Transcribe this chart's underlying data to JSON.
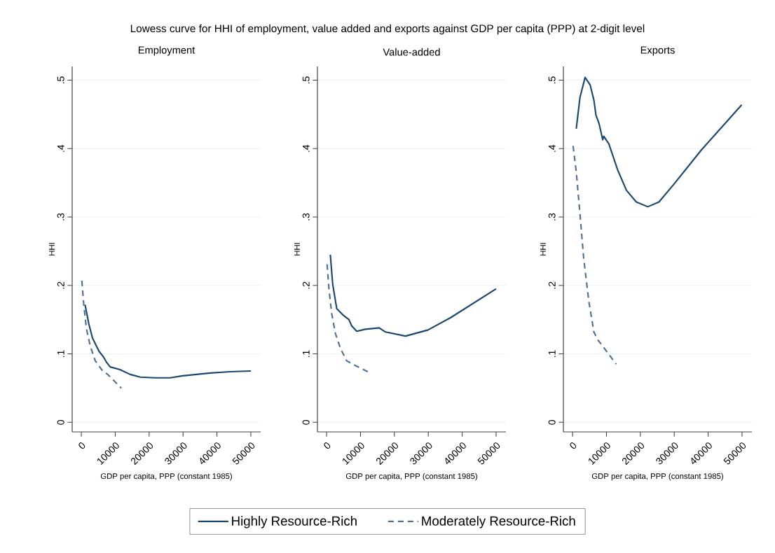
{
  "chart_data": [
    {
      "type": "line",
      "title": "Employment",
      "xlabel": "GDP per capita, PPP (constant 1985)",
      "ylabel": "HHI",
      "annotations": [
        "Lowess curve for HHI of employment, value added and exports against GDP per capita (PPP) at 2-digit level"
      ],
      "xlim": [
        -2700,
        52900
      ],
      "ylim": [
        -0.014,
        0.52
      ],
      "xticks": [
        0,
        10000,
        20000,
        30000,
        40000,
        50000
      ],
      "yticks": [
        0,
        {
          "value": 0.1,
          "label": ".1"
        },
        {
          "value": 0.2,
          "label": ".2"
        },
        {
          "value": 0.3,
          "label": ".3"
        },
        {
          "value": 0.4,
          "label": ".4"
        },
        {
          "value": 0.5,
          "label": ".5"
        }
      ],
      "grid": "y",
      "legend": "bottom",
      "series": [
        {
          "name": "Highly Resource-Rich",
          "color": "#1a476f",
          "line_style": "solid",
          "x": [
            1100,
            2200,
            3300,
            5200,
            6600,
            7400,
            8500,
            11400,
            14400,
            17400,
            21800,
            26200,
            29900,
            38000,
            43900,
            50000
          ],
          "values": [
            0.172,
            0.144,
            0.123,
            0.104,
            0.095,
            0.088,
            0.081,
            0.077,
            0.07,
            0.066,
            0.065,
            0.065,
            0.068,
            0.072,
            0.074,
            0.075
          ]
        },
        {
          "name": "Moderately Resource-Rich",
          "color": "#4e6f94",
          "line_style": "dashed",
          "x": [
            150,
            700,
            1500,
            2600,
            4100,
            6300,
            7800,
            11800
          ],
          "values": [
            0.207,
            0.173,
            0.137,
            0.112,
            0.09,
            0.075,
            0.07,
            0.05
          ]
        }
      ]
    },
    {
      "type": "line",
      "title": "Value-added",
      "xlabel": "GDP per capita, PPP (constant 1985)",
      "ylabel": "HHI",
      "xlim": [
        -2700,
        52900
      ],
      "ylim": [
        -0.014,
        0.52
      ],
      "xticks": [
        0,
        10000,
        20000,
        30000,
        40000,
        50000
      ],
      "yticks": [
        0,
        {
          "value": 0.1,
          "label": ".1"
        },
        {
          "value": 0.2,
          "label": ".2"
        },
        {
          "value": 0.3,
          "label": ".3"
        },
        {
          "value": 0.4,
          "label": ".4"
        },
        {
          "value": 0.5,
          "label": ".5"
        }
      ],
      "grid": "y",
      "series": [
        {
          "color": "#1a476f",
          "line_style": "solid",
          "x": [
            1100,
            1800,
            3000,
            4800,
            6600,
            7400,
            8900,
            11400,
            15500,
            17400,
            23300,
            29900,
            36600,
            50000
          ],
          "values": [
            0.245,
            0.202,
            0.166,
            0.157,
            0.15,
            0.141,
            0.133,
            0.136,
            0.138,
            0.132,
            0.126,
            0.135,
            0.153,
            0.195
          ]
        },
        {
          "color": "#4e6f94",
          "line_style": "dashed",
          "x": [
            150,
            700,
            1500,
            2600,
            4100,
            5900,
            8500,
            12900
          ],
          "values": [
            0.231,
            0.195,
            0.159,
            0.13,
            0.108,
            0.09,
            0.083,
            0.072
          ]
        }
      ]
    },
    {
      "type": "line",
      "title": "Exports",
      "xlabel": "GDP per capita, PPP (constant 1985)",
      "ylabel": "HHI",
      "xlim": [
        -2700,
        52900
      ],
      "ylim": [
        -0.014,
        0.52
      ],
      "xticks": [
        0,
        10000,
        20000,
        30000,
        40000,
        50000
      ],
      "yticks": [
        0,
        {
          "value": 0.1,
          "label": ".1"
        },
        {
          "value": 0.2,
          "label": ".2"
        },
        {
          "value": 0.3,
          "label": ".3"
        },
        {
          "value": 0.4,
          "label": ".4"
        },
        {
          "value": 0.5,
          "label": ".5"
        }
      ],
      "grid": "y",
      "series": [
        {
          "color": "#1a476f",
          "line_style": "solid",
          "x": [
            1100,
            2200,
            3700,
            5200,
            6300,
            6900,
            7800,
            8900,
            9200,
            10700,
            13300,
            15900,
            18800,
            22200,
            25500,
            29900,
            38000,
            49900
          ],
          "values": [
            0.429,
            0.475,
            0.504,
            0.493,
            0.471,
            0.449,
            0.437,
            0.413,
            0.418,
            0.407,
            0.369,
            0.339,
            0.322,
            0.315,
            0.322,
            0.348,
            0.398,
            0.464
          ]
        },
        {
          "color": "#4e6f94",
          "line_style": "dashed",
          "x": [
            150,
            1100,
            2200,
            3300,
            4800,
            6300,
            7400,
            10000,
            12900
          ],
          "values": [
            0.404,
            0.366,
            0.304,
            0.239,
            0.177,
            0.132,
            0.121,
            0.104,
            0.085
          ]
        }
      ]
    }
  ]
}
